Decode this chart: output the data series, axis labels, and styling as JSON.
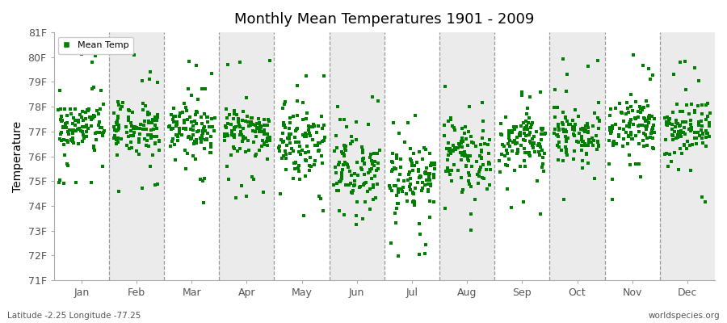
{
  "title": "Monthly Mean Temperatures 1901 - 2009",
  "ylabel": "Temperature",
  "xlabel_months": [
    "Jan",
    "Feb",
    "Mar",
    "Apr",
    "May",
    "Jun",
    "Jul",
    "Aug",
    "Sep",
    "Oct",
    "Nov",
    "Dec"
  ],
  "ytick_labels": [
    "71F",
    "72F",
    "73F",
    "74F",
    "75F",
    "76F",
    "77F",
    "78F",
    "79F",
    "80F",
    "81F"
  ],
  "ytick_values": [
    71,
    72,
    73,
    74,
    75,
    76,
    77,
    78,
    79,
    80,
    81
  ],
  "ylim": [
    71,
    81
  ],
  "dot_color": "#008000",
  "background_color": "#ffffff",
  "band_color_light": "#f0f0f0",
  "band_color_white": "#e8e8e8",
  "subtitle_left": "Latitude -2.25 Longitude -77.25",
  "subtitle_right": "worldspecies.org",
  "legend_label": "Mean Temp",
  "monthly_means": [
    77.15,
    77.1,
    77.05,
    77.0,
    76.5,
    75.5,
    74.9,
    75.9,
    76.6,
    77.0,
    77.1,
    77.15
  ],
  "monthly_stds": [
    0.55,
    0.5,
    0.55,
    0.55,
    0.65,
    0.75,
    0.75,
    0.65,
    0.55,
    0.55,
    0.55,
    0.55
  ],
  "monthly_outlier_rate": [
    0.12,
    0.1,
    0.1,
    0.1,
    0.1,
    0.1,
    0.1,
    0.08,
    0.08,
    0.08,
    0.08,
    0.1
  ],
  "n_years": 109,
  "seed": 42
}
